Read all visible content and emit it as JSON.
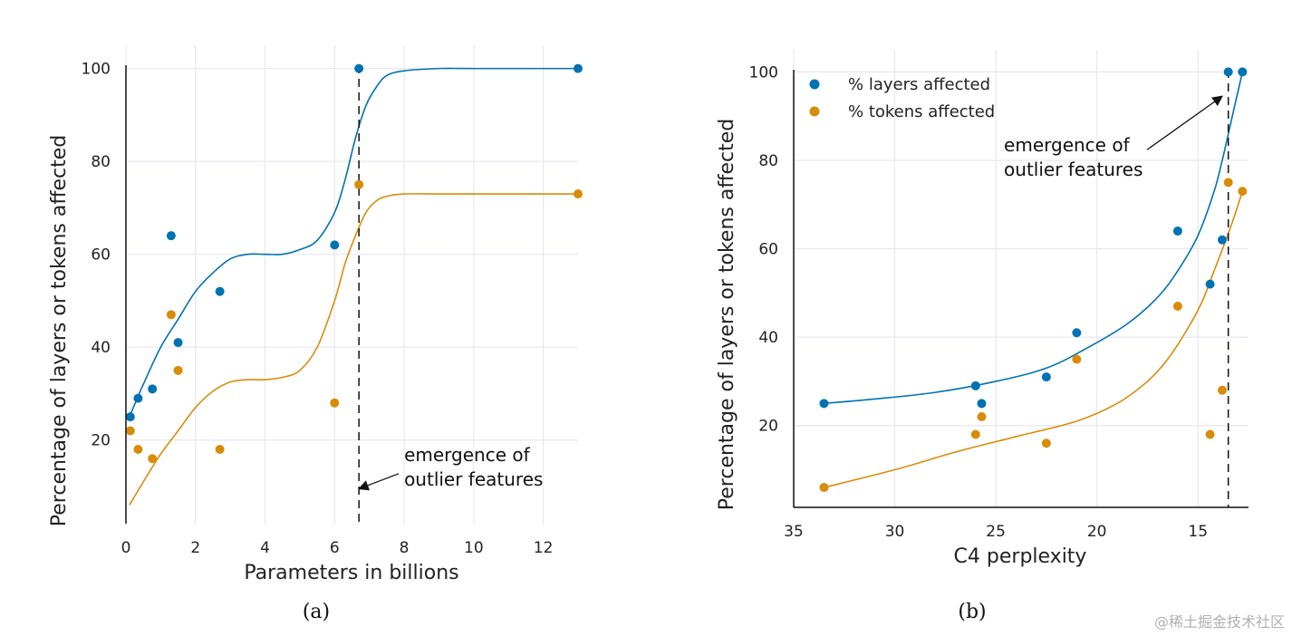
{
  "colors": {
    "blue": "#0072B2",
    "orange": "#D98C0A",
    "grid": "#e6e8ee",
    "axis": "#111111"
  },
  "watermark": "@稀土掘金技术社区",
  "chart_data": [
    {
      "type": "scatter",
      "caption": "(a)",
      "xlabel": "Parameters in billions",
      "ylabel": "Percentage of layers or tokens affected",
      "xlim": [
        0,
        13
      ],
      "ylim": [
        2,
        105
      ],
      "xticks": [
        0,
        2,
        4,
        6,
        8,
        10,
        12
      ],
      "yticks": [
        20,
        40,
        60,
        80,
        100
      ],
      "grid": true,
      "vline_x": 6.7,
      "annotation": {
        "lines": [
          "emergence of",
          "outlier features"
        ],
        "text_xy": [
          8.0,
          15.5
        ],
        "arrow_to": [
          6.7,
          9.5
        ]
      },
      "series": [
        {
          "color": "blue",
          "x": [
            0.125,
            0.35,
            0.76,
            1.3,
            1.5,
            2.7,
            6.0,
            6.7,
            13.0
          ],
          "values": [
            25,
            29,
            31,
            64,
            41,
            52,
            62,
            100,
            100
          ],
          "fit_x": [
            0.1,
            0.5,
            1.0,
            1.5,
            2.0,
            2.5,
            3.0,
            3.5,
            4.0,
            4.5,
            5.0,
            5.5,
            6.0,
            6.3,
            6.6,
            6.9,
            7.2,
            7.5,
            8.0,
            9.0,
            10.0,
            13.0
          ],
          "fit_y": [
            25,
            32,
            40,
            46,
            52,
            56,
            59,
            60,
            60,
            60,
            61,
            63,
            69,
            76,
            85,
            92,
            96,
            98.5,
            99.5,
            100,
            100,
            100
          ]
        },
        {
          "color": "orange",
          "x": [
            0.125,
            0.35,
            0.76,
            1.3,
            1.5,
            2.7,
            6.0,
            6.7,
            13.0
          ],
          "values": [
            22,
            18,
            16,
            47,
            35,
            18,
            28,
            75,
            73
          ],
          "fit_x": [
            0.1,
            0.5,
            1.0,
            1.5,
            2.0,
            2.5,
            3.0,
            3.5,
            4.0,
            4.5,
            5.0,
            5.5,
            6.0,
            6.3,
            6.6,
            6.9,
            7.2,
            7.5,
            8.0,
            9.0,
            10.0,
            13.0
          ],
          "fit_y": [
            6,
            11,
            17,
            22,
            27,
            30.5,
            32.5,
            33,
            33,
            33.5,
            35,
            40,
            50,
            58,
            64,
            69,
            71.5,
            72.5,
            73,
            73,
            73,
            73
          ]
        }
      ]
    },
    {
      "type": "scatter",
      "caption": "(b)",
      "xlabel": "C4 perplexity",
      "ylabel": "Percentage of layers or tokens affected",
      "xlim": [
        35,
        12.5
      ],
      "ylim": [
        1.5,
        105
      ],
      "xticks": [
        35,
        30,
        25,
        20,
        15
      ],
      "yticks": [
        20,
        40,
        60,
        80,
        100
      ],
      "grid": true,
      "vline_x": 13.5,
      "legend": {
        "position": "top-left",
        "entries": [
          "% layers affected",
          "% tokens affected"
        ]
      },
      "annotation": {
        "lines": [
          "emergence of",
          "outlier features"
        ],
        "text_xy": [
          24.6,
          82
        ],
        "arrow_to": [
          13.8,
          94.5
        ]
      },
      "series": [
        {
          "color": "blue",
          "x": [
            33.5,
            26.0,
            25.7,
            22.5,
            21.0,
            16.0,
            14.4,
            13.8,
            13.5,
            12.8
          ],
          "values": [
            25,
            29,
            25,
            31,
            41,
            64,
            52,
            62,
            100,
            100
          ],
          "fit_x": [
            33.5,
            31.0,
            28.0,
            25.0,
            22.5,
            20.5,
            18.5,
            17.0,
            16.0,
            15.0,
            14.2,
            13.8,
            13.4,
            13.0,
            12.8
          ],
          "fit_y": [
            25,
            26,
            27.5,
            30,
            33,
            37.5,
            43,
            49,
            55,
            63,
            73,
            80,
            88,
            96,
            100
          ]
        },
        {
          "color": "orange",
          "x": [
            33.5,
            26.0,
            25.7,
            22.5,
            21.0,
            16.0,
            14.4,
            13.8,
            13.5,
            12.8
          ],
          "values": [
            6,
            18,
            22,
            16,
            35,
            47,
            18,
            28,
            75,
            73
          ],
          "fit_x": [
            33.5,
            30.0,
            27.0,
            24.0,
            21.0,
            19.0,
            17.5,
            16.5,
            15.5,
            14.8,
            14.2,
            13.7,
            13.3,
            12.8
          ],
          "fit_y": [
            6,
            10,
            14,
            17.5,
            21,
            25,
            30,
            35,
            42,
            48,
            55,
            61,
            66,
            73
          ]
        }
      ]
    }
  ]
}
